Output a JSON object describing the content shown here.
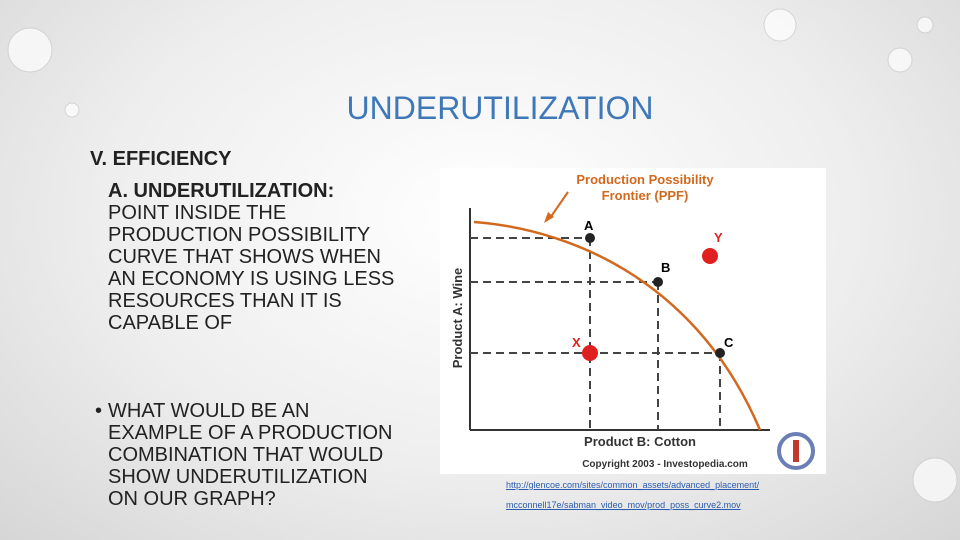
{
  "slide": {
    "title": "UNDERUTILIZATION",
    "heading": "V. EFFICIENCY",
    "definition": {
      "term": "A. UNDERUTILIZATION:",
      "text": "POINT INSIDE THE PRODUCTION POSSIBILITY CURVE THAT SHOWS WHEN AN ECONOMY IS USING LESS RESOURCES THAN IT IS CAPABLE OF"
    },
    "bullet": "WHAT WOULD BE AN EXAMPLE OF A PRODUCTION COMBINATION THAT WOULD SHOW UNDERUTILIZATION ON OUR GRAPH?",
    "link": [
      "http://glencoe.com/sites/common_assets/advanced_placement/",
      "mcconnell17e/sabman_video_mov/prod_poss_curve2.mov"
    ]
  },
  "diagram": {
    "title": [
      "Production Possibility",
      "Frontier (PPF)"
    ],
    "y_axis": "Product A: Wine",
    "x_axis": "Product B: Cotton",
    "points": [
      "A",
      "B",
      "C",
      "X",
      "Y"
    ],
    "copyright": "Copyright 2003 - Investopedia.com"
  }
}
